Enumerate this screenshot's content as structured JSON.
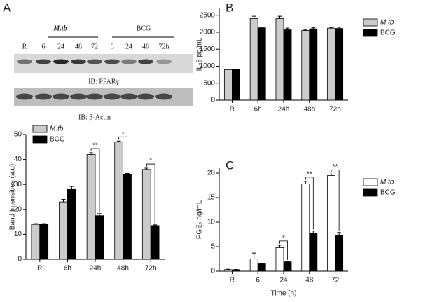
{
  "blot": {
    "group_labels": [
      "M.tb",
      "BCG"
    ],
    "lanes": [
      "R",
      "6",
      "24",
      "48",
      "72",
      "6",
      "24",
      "48",
      "72h"
    ],
    "captions": [
      "IB: PPARγ",
      "IB: β-Actin"
    ]
  },
  "chart_data": [
    {
      "type": "bar",
      "label": "A",
      "ylabel": "Band Intensities (a.u)",
      "categories": [
        "R",
        "6h",
        "24h",
        "48h",
        "72h"
      ],
      "series": [
        {
          "name": "M.tb",
          "color": "#cccccc",
          "values": [
            14,
            23,
            42,
            47,
            36
          ],
          "errors": [
            0.3,
            1,
            0.7,
            0.4,
            0.5
          ]
        },
        {
          "name": "BCG",
          "color": "#000000",
          "values": [
            14,
            28,
            17.5,
            34,
            13.5
          ],
          "errors": [
            0.3,
            1.2,
            0.8,
            0.4,
            0.3
          ]
        }
      ],
      "ylim": [
        0,
        50
      ],
      "yticks": [
        0,
        10,
        20,
        30,
        40,
        50
      ],
      "legend": "upper left",
      "annotations": [
        {
          "label": "**",
          "x": "24h"
        },
        {
          "label": "*",
          "x": "48h"
        },
        {
          "label": "*",
          "x": "72h"
        }
      ]
    },
    {
      "type": "bar",
      "label": "B",
      "ylabel": "IL-8 pg/mL",
      "categories": [
        "R",
        "6h",
        "24h",
        "48h",
        "72h"
      ],
      "series": [
        {
          "name": "M.tb",
          "color": "#cccccc",
          "values": [
            900,
            2400,
            2400,
            2050,
            2120
          ],
          "errors": [
            10,
            70,
            70,
            15,
            20
          ]
        },
        {
          "name": "BCG",
          "color": "#000000",
          "values": [
            900,
            2130,
            2070,
            2100,
            2110
          ],
          "errors": [
            10,
            25,
            50,
            30,
            35
          ]
        }
      ],
      "ylim": [
        0,
        2700
      ],
      "yticks": [
        0,
        500,
        1000,
        1500,
        2000,
        2500
      ],
      "legend": "upper right",
      "annotations": []
    },
    {
      "type": "bar",
      "label": "C",
      "ylabel": "PGE₂ ng/mL",
      "xlabel": "Time (h)",
      "categories": [
        "R",
        "6",
        "24",
        "48",
        "72"
      ],
      "series": [
        {
          "name": "M.tb",
          "color": "#ffffff",
          "values": [
            0.3,
            2.5,
            4.8,
            17.8,
            19.5
          ],
          "errors": [
            0.1,
            1.2,
            0.5,
            0.5,
            0.3
          ]
        },
        {
          "name": "BCG",
          "color": "#000000",
          "values": [
            0.3,
            1.5,
            1.9,
            7.7,
            7.3
          ],
          "errors": [
            0.05,
            0.1,
            0.1,
            0.5,
            0.6
          ]
        }
      ],
      "ylim": [
        0,
        21
      ],
      "yticks": [
        0,
        5,
        10,
        15,
        20
      ],
      "legend": "upper right",
      "annotations": [
        {
          "label": "*",
          "x": "24"
        },
        {
          "label": "**",
          "x": "48"
        },
        {
          "label": "**",
          "x": "72"
        }
      ]
    }
  ]
}
